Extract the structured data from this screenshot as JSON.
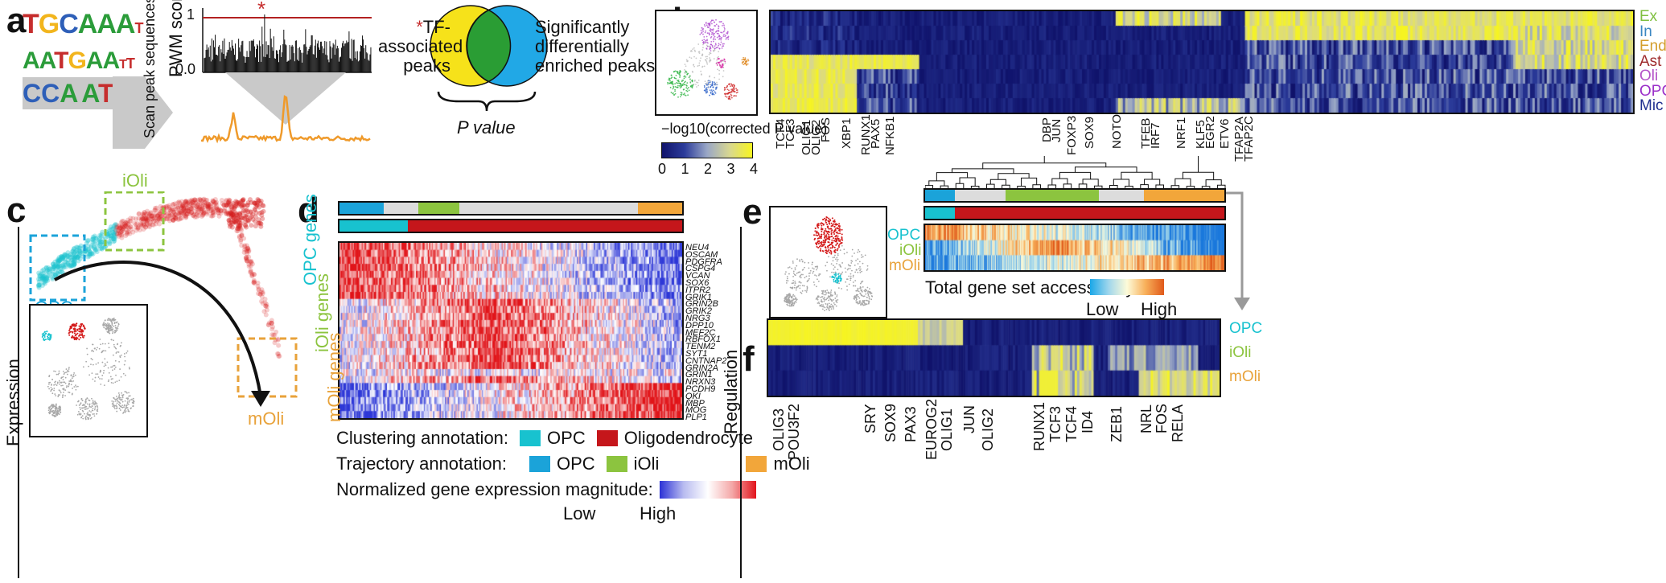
{
  "panels": {
    "a": "a",
    "b": "b",
    "c": "c",
    "d": "d",
    "e": "e",
    "f": "f"
  },
  "panel_a": {
    "motif_letters": [
      "TGCAAAT",
      "AATGAATT",
      "CCA ATG"
    ],
    "scan_label": "Scan peak sequences",
    "ylabel": "PWM score",
    "ytick_top": "1",
    "ytick_bottom": "0.0",
    "star": "*",
    "venn_left": "TF-associated peaks",
    "venn_right": "Significantly differentially enriched peaks",
    "pvalue": "P value"
  },
  "panel_b": {
    "row_labels": [
      {
        "name": "Ex",
        "color": "#7fbf3f"
      },
      {
        "name": "In",
        "color": "#3b87c2"
      },
      {
        "name": "End",
        "color": "#d49e2d"
      },
      {
        "name": "Ast",
        "color": "#9e2a2b"
      },
      {
        "name": "Oli",
        "color": "#b555c8"
      },
      {
        "name": "OPC",
        "color": "#9b30c9"
      },
      {
        "name": "Mic",
        "color": "#1f2f8f"
      }
    ],
    "colorbar_title": "−log10(corrected P value)",
    "colorbar_ticks": [
      "0",
      "1",
      "2",
      "3",
      "4"
    ],
    "tfs": [
      "TCF4",
      "TCF3",
      "OLIG1",
      "OLIG2",
      "FOS",
      "XBP1",
      "RUNX1",
      "PAX5",
      "NFKB1",
      "DBP",
      "JUN",
      "FOXP3",
      "SOX9",
      "NOTO",
      "TFEB",
      "IRF7",
      "NRF1",
      "KLF5",
      "EGR2",
      "ETV6",
      "TFAP2A",
      "TFAP2C"
    ]
  },
  "panel_c": {
    "labels": {
      "opc": "OPC",
      "ioli": "iOli",
      "moli": "mOli"
    },
    "side_label": "Expression",
    "colors": {
      "opc": "#1ba3d9",
      "ioli": "#8cc43f",
      "moli": "#e8a23a"
    }
  },
  "panel_d": {
    "genes": [
      "NEU4",
      "OSCAM",
      "PDGFRA",
      "CSPG4",
      "VCAN",
      "SOX6",
      "ITPR2",
      "GRIK1",
      "GRIN2B",
      "GRIK2",
      "NRG3",
      "DPP10",
      "MEF2C",
      "RBFOX1",
      "TENM2",
      "SYT1",
      "CNTNAP2",
      "GRIN2A",
      "GRIN1",
      "NRXN3",
      "PCDH9",
      "QKI",
      "MBP",
      "MOG",
      "PLP1"
    ],
    "group_labels": {
      "opc": "OPC genes",
      "ioli": "iOli genes",
      "moli": "mOli genes"
    },
    "legend": {
      "clustering_title": "Clustering annotation:",
      "clustering_opc": "OPC",
      "clustering_oligo": "Oligodendrocyte",
      "trajectory_title": "Trajectory annotation:",
      "trajectory_opc": "OPC",
      "trajectory_ioli": "iOli",
      "trajectory_moli": "mOli",
      "expr_title": "Normalized gene expression magnitude:",
      "low": "Low",
      "high": "High"
    }
  },
  "panel_e": {
    "row_labels": [
      "OPC",
      "iOli",
      "mOli"
    ],
    "colorbar_title": "Total gene set accessibility:",
    "low": "Low",
    "high": "High",
    "side_label": "Regulation"
  },
  "panel_f": {
    "row_labels": [
      "OPC",
      "iOli",
      "mOli"
    ],
    "tfs": [
      "OLIG3",
      "POU3F2",
      "SRY",
      "SOX9",
      "PAX3",
      "EUROG2",
      "OLIG1",
      "JUN",
      "OLIG2",
      "RUNX1",
      "TCF3",
      "TCF4",
      "ID4",
      "ZEB1",
      "NRL",
      "FOS",
      "RELA"
    ]
  }
}
